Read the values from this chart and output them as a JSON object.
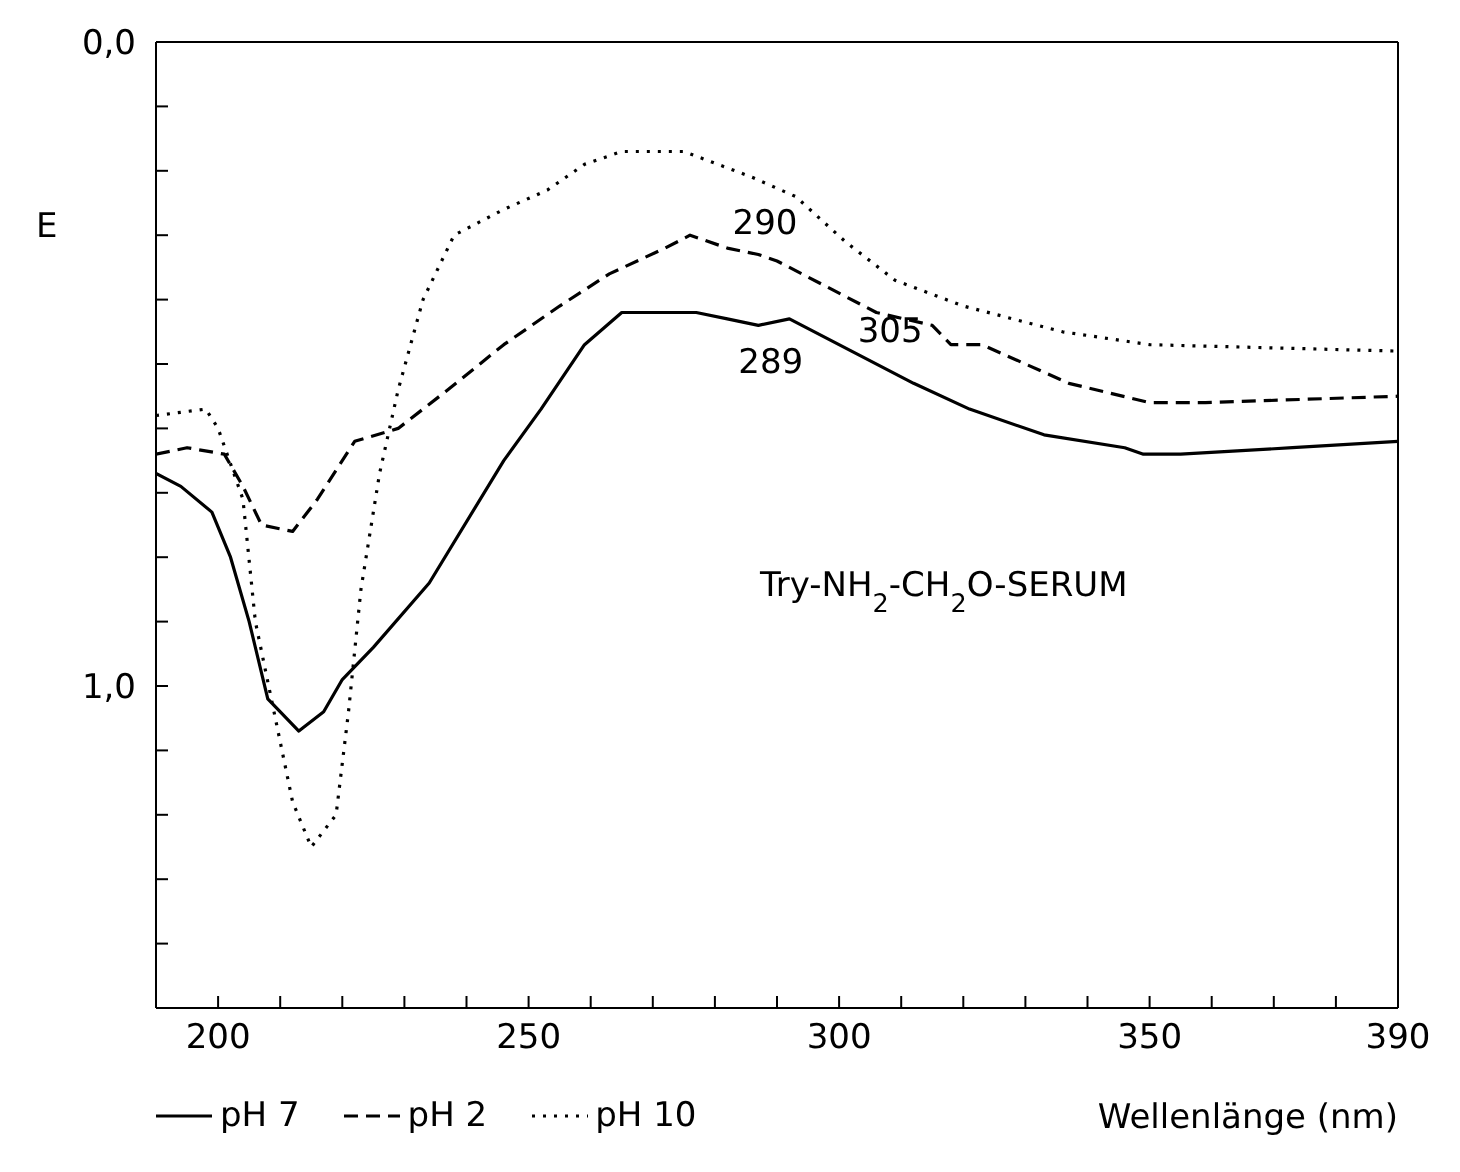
{
  "chart_data": {
    "type": "line",
    "xlabel": "Wellenlänge (nm)",
    "ylabel": "E",
    "legend": "bottom left",
    "grid": false,
    "xlim": [
      190,
      390
    ],
    "xticks": [
      200,
      {
        "value": 210,
        "label": null
      },
      {
        "value": 220,
        "label": null
      },
      {
        "value": 230,
        "label": null
      },
      {
        "value": 240,
        "label": null
      },
      250,
      {
        "value": 260,
        "label": null
      },
      {
        "value": 270,
        "label": null
      },
      {
        "value": 280,
        "label": null
      },
      {
        "value": 290,
        "label": null
      },
      300,
      {
        "value": 310,
        "label": null
      },
      {
        "value": 320,
        "label": null
      },
      {
        "value": 330,
        "label": null
      },
      {
        "value": 340,
        "label": null
      },
      350,
      {
        "value": 360,
        "label": null
      },
      {
        "value": 370,
        "label": null
      },
      {
        "value": 380,
        "label": null
      },
      390
    ],
    "ylim": [
      1.5,
      0
    ],
    "yticks": [
      {
        "value": 0,
        "label": "0,0"
      },
      {
        "value": 0.1,
        "label": null
      },
      {
        "value": 0.2,
        "label": null
      },
      {
        "value": 0.3,
        "label": null
      },
      {
        "value": 0.4,
        "label": null
      },
      {
        "value": 0.5,
        "label": null
      },
      {
        "value": 0.6,
        "label": null
      },
      {
        "value": 0.7,
        "label": null
      },
      {
        "value": 0.8,
        "label": null
      },
      {
        "value": 0.9,
        "label": null
      },
      {
        "value": 1,
        "label": "1,0"
      },
      {
        "value": 1.1,
        "label": null
      },
      {
        "value": 1.2,
        "label": null
      },
      {
        "value": 1.3,
        "label": null
      },
      {
        "value": 1.4,
        "label": null
      }
    ],
    "series": [
      {
        "name": "pH 7",
        "color": "#000000",
        "line_style": "solid",
        "x": [
          190,
          194,
          199,
          202,
          205,
          208,
          213,
          217,
          220,
          225,
          234,
          246,
          252,
          259,
          265,
          272,
          277,
          282,
          287,
          292,
          302,
          312,
          321,
          333,
          346,
          349,
          355,
          373,
          390
        ],
        "values": [
          0.67,
          0.69,
          0.73,
          0.8,
          0.9,
          1.02,
          1.07,
          1.04,
          0.99,
          0.94,
          0.84,
          0.65,
          0.57,
          0.47,
          0.42,
          0.42,
          0.42,
          0.43,
          0.44,
          0.43,
          0.48,
          0.53,
          0.57,
          0.61,
          0.63,
          0.64,
          0.64,
          0.63,
          0.62
        ]
      },
      {
        "name": "pH 2",
        "color": "#000000",
        "line_style": "dashed",
        "x": [
          190,
          195,
          201,
          204,
          207,
          212,
          216,
          222,
          229,
          237,
          246,
          255,
          263,
          272,
          276,
          282,
          287,
          290,
          298,
          306,
          315,
          318,
          323,
          337,
          350,
          359,
          390
        ],
        "values": [
          0.64,
          0.63,
          0.64,
          0.69,
          0.75,
          0.76,
          0.71,
          0.62,
          0.6,
          0.54,
          0.47,
          0.41,
          0.36,
          0.32,
          0.3,
          0.32,
          0.33,
          0.34,
          0.38,
          0.42,
          0.44,
          0.47,
          0.47,
          0.53,
          0.56,
          0.56,
          0.55
        ]
      },
      {
        "name": "pH 10",
        "color": "#000000",
        "line_style": "dotted",
        "x": [
          190,
          198,
          200,
          204,
          206,
          209,
          212,
          215,
          219,
          221,
          223,
          226,
          229,
          233,
          238,
          246,
          253,
          259,
          265,
          275,
          286,
          293,
          301,
          309,
          320,
          336,
          350,
          390
        ],
        "values": [
          0.58,
          0.57,
          0.6,
          0.71,
          0.9,
          1.04,
          1.18,
          1.25,
          1.2,
          1.04,
          0.85,
          0.67,
          0.54,
          0.4,
          0.3,
          0.26,
          0.23,
          0.19,
          0.17,
          0.17,
          0.21,
          0.24,
          0.31,
          0.37,
          0.41,
          0.45,
          0.47,
          0.48
        ]
      }
    ],
    "annotations": [
      {
        "text": "290",
        "x": 290,
        "y": 0.23
      },
      {
        "text": "289",
        "x": 289,
        "y": 0.44
      },
      {
        "text": "305",
        "x": 305,
        "y": 0.49
      },
      "Try-NH$_{2}$-CH$_{2}$O-SERUM"
    ]
  }
}
